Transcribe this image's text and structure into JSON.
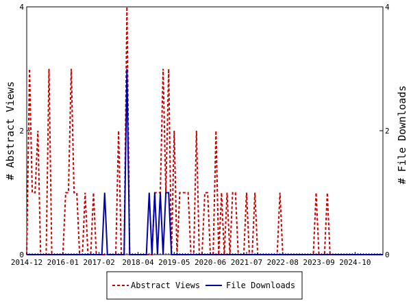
{
  "chart_data": {
    "type": "line",
    "x_tick_labels": [
      "2014-12",
      "2016-01",
      "2017-02",
      "2018-04",
      "2019-05",
      "2020-06",
      "2021-07",
      "2022-08",
      "2023-09",
      "2024-10"
    ],
    "y_left": {
      "label": "# Abstract Views",
      "ticks": [
        "0",
        "2",
        "4"
      ],
      "range": [
        0,
        4
      ]
    },
    "y_right": {
      "label": "# File Downloads",
      "ticks": [
        "0",
        "2",
        "4"
      ],
      "range": [
        0,
        4
      ]
    },
    "x_range": [
      "2014-12",
      "2025-08"
    ],
    "legend_position": "bottom",
    "series": [
      {
        "name": "Abstract Views",
        "color": "#cc0000",
        "style": "dashed",
        "axis": "left",
        "points": [
          [
            "2014-12",
            0
          ],
          [
            "2015-01",
            3
          ],
          [
            "2015-02",
            1
          ],
          [
            "2015-03",
            1
          ],
          [
            "2015-04",
            2
          ],
          [
            "2015-05",
            0
          ],
          [
            "2015-06",
            0
          ],
          [
            "2015-07",
            0
          ],
          [
            "2015-08",
            3
          ],
          [
            "2015-09",
            0
          ],
          [
            "2015-10",
            0
          ],
          [
            "2015-11",
            0
          ],
          [
            "2015-12",
            0
          ],
          [
            "2016-01",
            0
          ],
          [
            "2016-02",
            1
          ],
          [
            "2016-03",
            1
          ],
          [
            "2016-04",
            3
          ],
          [
            "2016-05",
            1
          ],
          [
            "2016-06",
            1
          ],
          [
            "2016-07",
            0
          ],
          [
            "2016-08",
            0
          ],
          [
            "2016-09",
            1
          ],
          [
            "2016-10",
            0
          ],
          [
            "2016-11",
            0
          ],
          [
            "2016-12",
            1
          ],
          [
            "2017-01",
            0
          ],
          [
            "2017-02",
            0
          ],
          [
            "2017-03",
            0
          ],
          [
            "2017-04",
            0
          ],
          [
            "2017-05",
            0
          ],
          [
            "2017-06",
            0
          ],
          [
            "2017-07",
            0
          ],
          [
            "2017-08",
            0
          ],
          [
            "2017-09",
            2
          ],
          [
            "2017-10",
            0
          ],
          [
            "2017-11",
            0
          ],
          [
            "2017-12",
            4
          ],
          [
            "2018-01",
            0
          ],
          [
            "2018-02",
            0
          ],
          [
            "2018-03",
            0
          ],
          [
            "2018-04",
            0
          ],
          [
            "2018-05",
            0
          ],
          [
            "2018-06",
            0
          ],
          [
            "2018-07",
            0
          ],
          [
            "2018-08",
            0
          ],
          [
            "2018-09",
            0
          ],
          [
            "2018-10",
            1
          ],
          [
            "2018-11",
            1
          ],
          [
            "2018-12",
            1
          ],
          [
            "2019-01",
            3
          ],
          [
            "2019-02",
            1
          ],
          [
            "2019-03",
            3
          ],
          [
            "2019-04",
            0
          ],
          [
            "2019-05",
            2
          ],
          [
            "2019-06",
            0
          ],
          [
            "2019-07",
            1
          ],
          [
            "2019-08",
            1
          ],
          [
            "2019-09",
            1
          ],
          [
            "2019-10",
            1
          ],
          [
            "2019-11",
            0
          ],
          [
            "2019-12",
            0
          ],
          [
            "2020-01",
            2
          ],
          [
            "2020-02",
            0
          ],
          [
            "2020-03",
            0
          ],
          [
            "2020-04",
            1
          ],
          [
            "2020-05",
            1
          ],
          [
            "2020-06",
            0
          ],
          [
            "2020-07",
            0
          ],
          [
            "2020-08",
            2
          ],
          [
            "2020-09",
            0
          ],
          [
            "2020-10",
            1
          ],
          [
            "2020-11",
            0
          ],
          [
            "2020-12",
            1
          ],
          [
            "2021-01",
            0
          ],
          [
            "2021-02",
            1
          ],
          [
            "2021-03",
            1
          ],
          [
            "2021-04",
            0
          ],
          [
            "2021-05",
            0
          ],
          [
            "2021-06",
            0
          ],
          [
            "2021-07",
            1
          ],
          [
            "2021-08",
            0
          ],
          [
            "2021-09",
            0
          ],
          [
            "2021-10",
            1
          ],
          [
            "2021-11",
            0
          ],
          [
            "2021-12",
            0
          ],
          [
            "2022-01",
            0
          ],
          [
            "2022-02",
            0
          ],
          [
            "2022-03",
            0
          ],
          [
            "2022-04",
            0
          ],
          [
            "2022-05",
            0
          ],
          [
            "2022-06",
            0
          ],
          [
            "2022-07",
            1
          ],
          [
            "2022-08",
            0
          ],
          [
            "2022-09",
            0
          ],
          [
            "2022-10",
            0
          ],
          [
            "2022-11",
            0
          ],
          [
            "2022-12",
            0
          ],
          [
            "2023-01",
            0
          ],
          [
            "2023-02",
            0
          ],
          [
            "2023-03",
            0
          ],
          [
            "2023-04",
            0
          ],
          [
            "2023-05",
            0
          ],
          [
            "2023-06",
            0
          ],
          [
            "2023-07",
            0
          ],
          [
            "2023-08",
            1
          ],
          [
            "2023-09",
            0
          ],
          [
            "2023-10",
            0
          ],
          [
            "2023-11",
            0
          ],
          [
            "2023-12",
            1
          ],
          [
            "2024-01",
            0
          ],
          [
            "2024-02",
            0
          ],
          [
            "2024-03",
            0
          ],
          [
            "2024-04",
            0
          ],
          [
            "2024-05",
            0
          ],
          [
            "2024-06",
            0
          ],
          [
            "2024-07",
            0
          ],
          [
            "2024-08",
            0
          ],
          [
            "2024-09",
            0
          ],
          [
            "2024-10",
            0
          ],
          [
            "2024-11",
            0
          ],
          [
            "2024-12",
            0
          ],
          [
            "2025-01",
            0
          ],
          [
            "2025-02",
            0
          ],
          [
            "2025-03",
            0
          ],
          [
            "2025-04",
            0
          ],
          [
            "2025-05",
            0
          ],
          [
            "2025-06",
            0
          ],
          [
            "2025-07",
            0
          ],
          [
            "2025-08",
            0
          ]
        ]
      },
      {
        "name": "File Downloads",
        "color": "#0000aa",
        "style": "solid",
        "axis": "right",
        "points": [
          [
            "2014-12",
            0
          ],
          [
            "2015-06",
            0
          ],
          [
            "2016-06",
            0
          ],
          [
            "2017-03",
            0
          ],
          [
            "2017-04",
            1
          ],
          [
            "2017-05",
            0
          ],
          [
            "2017-06",
            0
          ],
          [
            "2017-11",
            0
          ],
          [
            "2017-12",
            3
          ],
          [
            "2018-01",
            0
          ],
          [
            "2018-02",
            0
          ],
          [
            "2018-07",
            0
          ],
          [
            "2018-08",
            1
          ],
          [
            "2018-09",
            0
          ],
          [
            "2018-10",
            1
          ],
          [
            "2018-11",
            0
          ],
          [
            "2018-12",
            1
          ],
          [
            "2019-01",
            0
          ],
          [
            "2019-02",
            1
          ],
          [
            "2019-03",
            1
          ],
          [
            "2019-04",
            0
          ],
          [
            "2019-05",
            0
          ],
          [
            "2020-06",
            0
          ],
          [
            "2021-07",
            0
          ],
          [
            "2022-08",
            0
          ],
          [
            "2023-09",
            0
          ],
          [
            "2024-10",
            0
          ],
          [
            "2025-08",
            0
          ]
        ]
      }
    ]
  }
}
